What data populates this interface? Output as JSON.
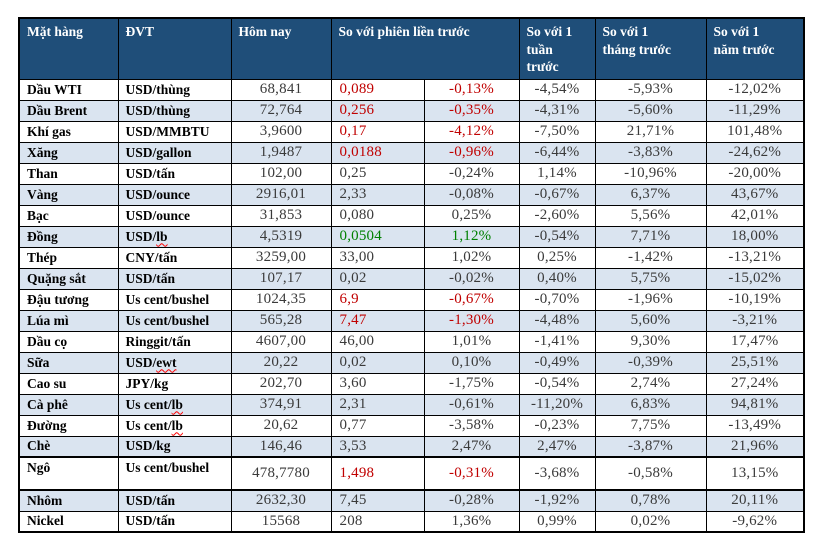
{
  "colors": {
    "header_bg": "#1F4E79",
    "header_text": "#FFFFFF",
    "row_alt_bg": "#DAE4F0",
    "negative": "#C00000",
    "positive": "#008000",
    "number_text": "#3A3A3A",
    "label_text": "#000000",
    "border": "#000000",
    "spellcheck": "#FF0000"
  },
  "table": {
    "headers": {
      "commodity": "Mặt hàng",
      "unit": "ĐVT",
      "today": "Hôm nay",
      "vs_prev_session": "So với phiên liền trước",
      "vs_week": "So với 1\ntuần\ntrước",
      "vs_month": "So với 1\ntháng trước",
      "vs_year": "So với 1\nnăm trước"
    },
    "rows": [
      {
        "name": "Dầu WTI",
        "unit": "USD/thùng",
        "today": "68,841",
        "change": "0,089",
        "change_pct": "-0,13%",
        "week": "-4,54%",
        "month": "-5,93%",
        "year": "-12,02%",
        "change_style": "negative"
      },
      {
        "name": "Dầu Brent",
        "unit": "USD/thùng",
        "today": "72,764",
        "change": "0,256",
        "change_pct": "-0,35%",
        "week": "-4,31%",
        "month": "-5,60%",
        "year": "-11,29%",
        "change_style": "negative"
      },
      {
        "name": "Khí gas",
        "unit": "USD/MMBTU",
        "today": "3,9600",
        "change": "0,17",
        "change_pct": "-4,12%",
        "week": "-7,50%",
        "month": "21,71%",
        "year": "101,48%",
        "change_style": "negative"
      },
      {
        "name": "Xăng",
        "unit": "USD/gallon",
        "today": "1,9487",
        "change": "0,0188",
        "change_pct": "-0,96%",
        "week": "-6,44%",
        "month": "-3,83%",
        "year": "-24,62%",
        "change_style": "negative"
      },
      {
        "name": "Than",
        "unit": "USD/tấn",
        "today": "102,00",
        "change": "0,25",
        "change_pct": "-0,24%",
        "week": "1,14%",
        "month": "-10,96%",
        "year": "-20,00%",
        "change_style": "default"
      },
      {
        "name": "Vàng",
        "unit": "USD/ounce",
        "today": "2916,01",
        "change": "2,33",
        "change_pct": "-0,08%",
        "week": "-0,67%",
        "month": "6,37%",
        "year": "43,67%",
        "change_style": "default"
      },
      {
        "name": "Bạc",
        "unit": "USD/ounce",
        "today": "31,853",
        "change": "0,080",
        "change_pct": "0,25%",
        "week": "-2,60%",
        "month": "5,56%",
        "year": "42,01%",
        "change_style": "default"
      },
      {
        "name": "Đồng",
        "unit": "USD/lb",
        "misspelled": "lb",
        "today": "4,5319",
        "change": "0,0504",
        "change_pct": "1,12%",
        "week": "-0,54%",
        "month": "7,71%",
        "year": "18,00%",
        "change_style": "positive"
      },
      {
        "name": "Thép",
        "unit": "CNY/tấn",
        "today": "3259,00",
        "change": "33,00",
        "change_pct": "1,02%",
        "week": "0,25%",
        "month": "-1,42%",
        "year": "-13,21%",
        "change_style": "default"
      },
      {
        "name": "Quặng sắt",
        "unit": "USD/tấn",
        "today": "107,17",
        "change": "0,02",
        "change_pct": "-0,02%",
        "week": "0,40%",
        "month": "5,75%",
        "year": "-15,02%",
        "change_style": "default"
      },
      {
        "name": "Đậu tương",
        "unit": "Us cent/bushel",
        "today": "1024,35",
        "change": "6,9",
        "change_pct": "-0,67%",
        "week": "-0,70%",
        "month": "-1,96%",
        "year": "-10,19%",
        "change_style": "negative"
      },
      {
        "name": "Lúa mì",
        "unit": "Us cent/bushel",
        "today": "565,28",
        "change": "7,47",
        "change_pct": "-1,30%",
        "week": "-4,48%",
        "month": "5,60%",
        "year": "-3,21%",
        "change_style": "negative"
      },
      {
        "name": "Dầu cọ",
        "unit": "Ringgit/tấn",
        "today": "4607,00",
        "change": "46,00",
        "change_pct": "1,01%",
        "week": "-1,41%",
        "month": "9,30%",
        "year": "17,47%",
        "change_style": "default"
      },
      {
        "name": "Sữa",
        "unit": "USD/ewt",
        "misspelled": "ewt",
        "today": "20,22",
        "change": "0,02",
        "change_pct": "0,10%",
        "week": "-0,49%",
        "month": "-0,39%",
        "year": "25,51%",
        "change_style": "default"
      },
      {
        "name": "Cao su",
        "unit": "JPY/kg",
        "today": "202,70",
        "change": "3,60",
        "change_pct": "-1,75%",
        "week": "-0,54%",
        "month": "2,74%",
        "year": "27,24%",
        "change_style": "default"
      },
      {
        "name": "Cà phê",
        "unit": "Us cent/lb",
        "misspelled": "lb",
        "today": "374,91",
        "change": "2,31",
        "change_pct": "-0,61%",
        "week": "-11,20%",
        "month": "6,83%",
        "year": "94,81%",
        "change_style": "default"
      },
      {
        "name": "Đường",
        "unit": "Us cent/lb",
        "misspelled": "lb",
        "today": "20,62",
        "change": "0,77",
        "change_pct": "-3,58%",
        "week": "-0,23%",
        "month": "7,75%",
        "year": "-13,49%",
        "change_style": "default"
      },
      {
        "name": "Chè",
        "unit": "USD/kg",
        "today": "146,46",
        "change": "3,53",
        "change_pct": "2,47%",
        "week": "2,47%",
        "month": "-3,87%",
        "year": "21,96%",
        "change_style": "default"
      },
      {
        "name": "Ngô",
        "unit": "Us cent/bushel",
        "today": "478,7780",
        "change": "1,498",
        "change_pct": "-0,31%",
        "week": "-3,68%",
        "month": "-0,58%",
        "year": "13,15%",
        "change_style": "negative"
      },
      {
        "name": "Nhôm",
        "unit": "USD/tấn",
        "today": "2632,30",
        "change": "7,45",
        "change_pct": "-0,28%",
        "week": "-1,92%",
        "month": "0,78%",
        "year": "20,11%",
        "change_style": "default"
      },
      {
        "name": "Nickel",
        "unit": "USD/tấn",
        "today": "15568",
        "change": "208",
        "change_pct": "1,36%",
        "week": "0,99%",
        "month": "0,02%",
        "year": "-9,62%",
        "change_style": "default"
      }
    ]
  }
}
